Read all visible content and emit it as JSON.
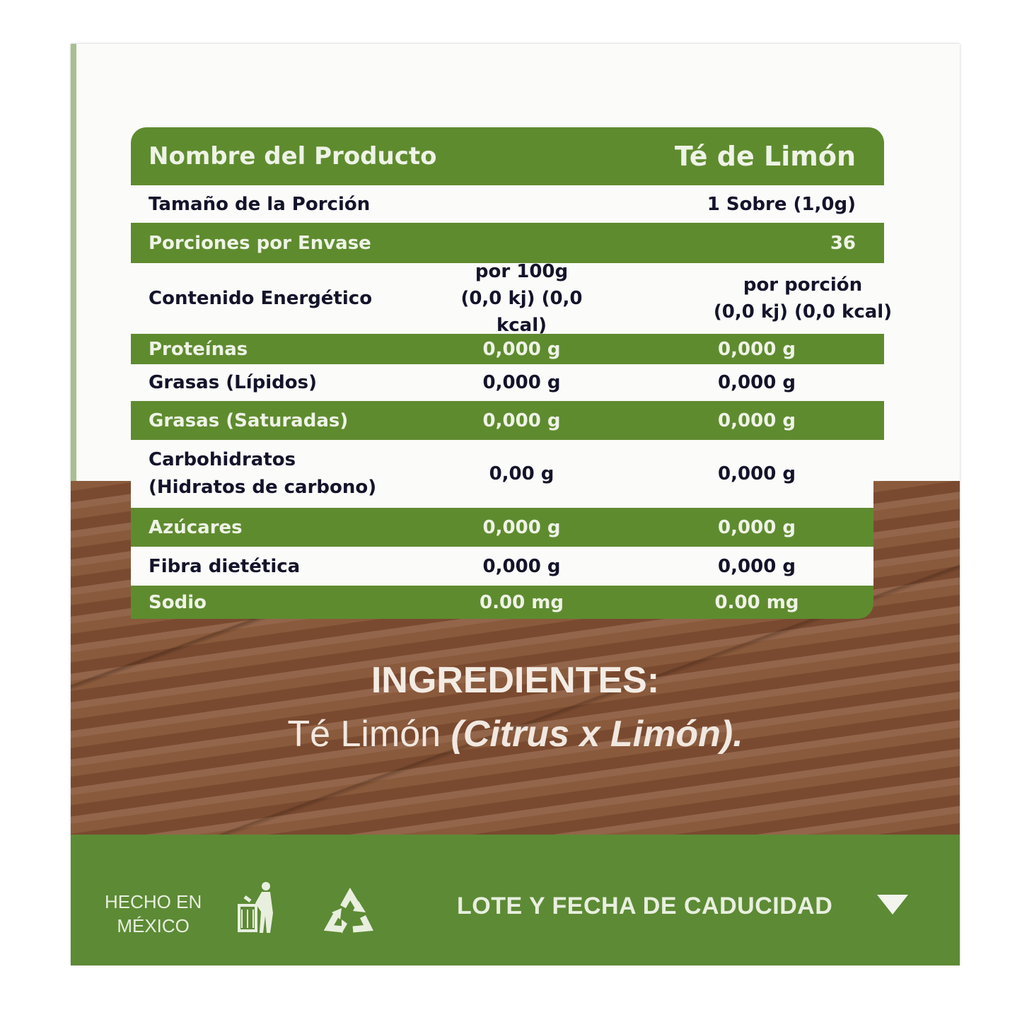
{
  "table": {
    "product_label": "Nombre del Producto",
    "product_value": "Té de Limón",
    "serving_label": "Tamaño de la Porción",
    "serving_value": "1 Sobre (1,0g)",
    "servings_label": "Porciones por Envase",
    "servings_value": "36",
    "energy_label": "Contenido Energético",
    "col1_head": "por 100g",
    "col1_energy": "(0,0 kj) (0,0 kcal)",
    "col2_head": "por porción",
    "col2_energy": "(0,0 kj) (0,0 kcal)",
    "rows": [
      {
        "label": "Proteínas",
        "per100": "0,000 g",
        "perPortion": "0,000 g"
      },
      {
        "label": "Grasas (Lípidos)",
        "per100": "0,000 g",
        "perPortion": "0,000 g"
      },
      {
        "label": "Grasas (Saturadas)",
        "per100": "0,000 g",
        "perPortion": "0,000 g"
      },
      {
        "label": "Carbohidratos",
        "label2": "(Hidratos de carbono)",
        "per100": "0,00 g",
        "perPortion": "0,000 g"
      },
      {
        "label": "Azúcares",
        "per100": "0,000 g",
        "perPortion": "0,000 g"
      },
      {
        "label": "Fibra dietética",
        "per100": "0,000 g",
        "perPortion": "0,000 g"
      },
      {
        "label": "Sodio",
        "per100": "0.00 mg",
        "perPortion": "0.00 mg"
      }
    ]
  },
  "ingredients": {
    "title": "INGREDIENTES:",
    "text": "Té Limón ",
    "italic": "(Citrus x Limón)",
    "end": "."
  },
  "footer": {
    "made_line1": "HECHO EN",
    "made_line2": "MÉXICO",
    "lot": "LOTE Y FECHA DE CADUCIDAD",
    "icons": [
      "trash-disposal-icon",
      "recycle-icon",
      "triangle-down-icon"
    ]
  },
  "colors": {
    "green": "#5f8b2f",
    "text": "#13132a",
    "wood": "#7d4f33"
  }
}
